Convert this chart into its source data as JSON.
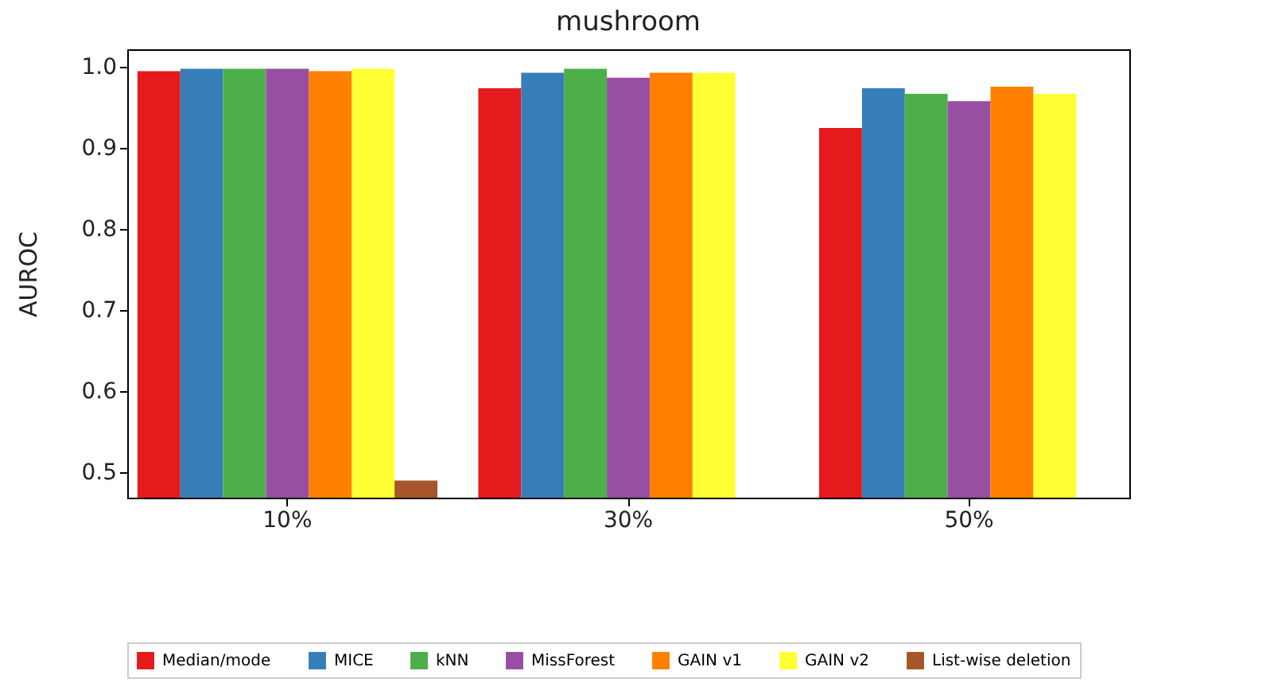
{
  "chart_data": {
    "type": "bar",
    "title": "mushroom",
    "ylabel": "AUROC",
    "categories": [
      "10%",
      "30%",
      "50%"
    ],
    "series": [
      {
        "name": "Median/mode",
        "color": "#e41a1c",
        "values": [
          0.995,
          0.974,
          0.925
        ]
      },
      {
        "name": "MICE",
        "color": "#377eb8",
        "values": [
          0.998,
          0.993,
          0.974
        ]
      },
      {
        "name": "kNN",
        "color": "#4daf4a",
        "values": [
          0.998,
          0.998,
          0.967
        ]
      },
      {
        "name": "MissForest",
        "color": "#984ea3",
        "values": [
          0.998,
          0.987,
          0.958
        ]
      },
      {
        "name": "GAIN v1",
        "color": "#ff7f00",
        "values": [
          0.995,
          0.993,
          0.976
        ]
      },
      {
        "name": "GAIN v2",
        "color": "#ffff33",
        "values": [
          0.998,
          0.993,
          0.967
        ]
      },
      {
        "name": "List-wise deletion",
        "color": "#a65628",
        "values": [
          0.49,
          null,
          null
        ]
      }
    ],
    "ylim": [
      0.469,
      1.022
    ],
    "yticks": [
      0.5,
      0.6,
      0.7,
      0.8,
      0.9,
      {
        "value": 1,
        "label": "1.0"
      }
    ],
    "grid": false,
    "legend": "bottom"
  }
}
